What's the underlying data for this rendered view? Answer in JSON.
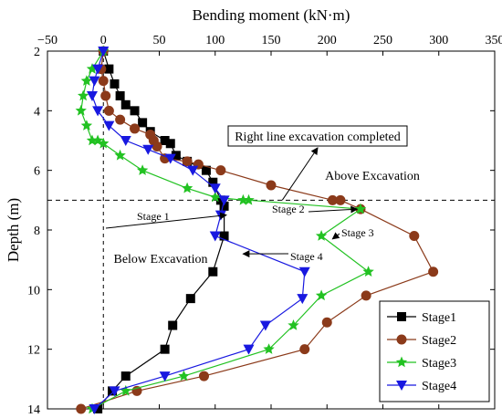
{
  "chart_data": {
    "type": "line",
    "xlabel": "Bending moment (kN·m)",
    "ylabel": "Depth (m)",
    "xlim": [
      -50,
      350
    ],
    "ylim": [
      2,
      14
    ],
    "y_inverted": true,
    "x_axis_position": "top",
    "x_ticks": [
      -50,
      0,
      50,
      100,
      150,
      200,
      250,
      300,
      350
    ],
    "y_ticks": [
      2,
      4,
      6,
      8,
      10,
      12,
      14
    ],
    "excavation_depth": 7,
    "annotations": {
      "excavation_completed": "Right line excavation completed",
      "above": "Above Excavation",
      "below": "Below Excavation",
      "stage1": "Stage 1",
      "stage2": "Stage 2",
      "stage3": "Stage 3",
      "stage4": "Stage 4"
    },
    "legend_position": "bottom-right",
    "series": [
      {
        "name": "Stage1",
        "color": "#000000",
        "marker": "square",
        "points": [
          [
            0,
            2.0
          ],
          [
            5,
            2.6
          ],
          [
            10,
            3.1
          ],
          [
            15,
            3.5
          ],
          [
            20,
            3.8
          ],
          [
            28,
            4.0
          ],
          [
            35,
            4.4
          ],
          [
            42,
            4.7
          ],
          [
            55,
            5.0
          ],
          [
            60,
            5.1
          ],
          [
            65,
            5.5
          ],
          [
            75,
            5.7
          ],
          [
            92,
            6.0
          ],
          [
            98,
            6.4
          ],
          [
            105,
            7.0
          ],
          [
            108,
            7.2
          ],
          [
            108,
            8.2
          ],
          [
            98,
            9.4
          ],
          [
            78,
            10.3
          ],
          [
            62,
            11.2
          ],
          [
            55,
            12.0
          ],
          [
            20,
            12.9
          ],
          [
            8,
            13.4
          ],
          [
            -5,
            14.0
          ]
        ]
      },
      {
        "name": "Stage2",
        "color": "#8B3A1A",
        "marker": "circle",
        "points": [
          [
            0,
            2.0
          ],
          [
            -2,
            2.6
          ],
          [
            0,
            3.0
          ],
          [
            2,
            3.5
          ],
          [
            5,
            4.0
          ],
          [
            15,
            4.3
          ],
          [
            28,
            4.6
          ],
          [
            42,
            4.8
          ],
          [
            45,
            5.0
          ],
          [
            48,
            5.2
          ],
          [
            55,
            5.6
          ],
          [
            75,
            5.7
          ],
          [
            85,
            5.8
          ],
          [
            105,
            6.0
          ],
          [
            150,
            6.5
          ],
          [
            205,
            7.0
          ],
          [
            212,
            7.0
          ],
          [
            230,
            7.3
          ],
          [
            278,
            8.2
          ],
          [
            295,
            9.4
          ],
          [
            235,
            10.2
          ],
          [
            200,
            11.1
          ],
          [
            180,
            12.0
          ],
          [
            90,
            12.9
          ],
          [
            30,
            13.4
          ],
          [
            -20,
            14.0
          ]
        ]
      },
      {
        "name": "Stage3",
        "color": "#22C222",
        "marker": "star",
        "points": [
          [
            0,
            2.0
          ],
          [
            -10,
            2.6
          ],
          [
            -15,
            3.0
          ],
          [
            -18,
            3.5
          ],
          [
            -20,
            4.0
          ],
          [
            -15,
            4.5
          ],
          [
            -10,
            5.0
          ],
          [
            -5,
            5.0
          ],
          [
            0,
            5.1
          ],
          [
            15,
            5.5
          ],
          [
            35,
            6.0
          ],
          [
            75,
            6.6
          ],
          [
            100,
            6.9
          ],
          [
            125,
            7.0
          ],
          [
            130,
            7.0
          ],
          [
            230,
            7.3
          ],
          [
            195,
            8.2
          ],
          [
            237,
            9.4
          ],
          [
            195,
            10.2
          ],
          [
            170,
            11.2
          ],
          [
            148,
            12.0
          ],
          [
            72,
            12.9
          ],
          [
            20,
            13.4
          ],
          [
            -10,
            14.0
          ]
        ]
      },
      {
        "name": "Stage4",
        "color": "#1818E0",
        "marker": "triangle-down",
        "points": [
          [
            0,
            2.0
          ],
          [
            -5,
            2.6
          ],
          [
            -8,
            3.0
          ],
          [
            -10,
            3.5
          ],
          [
            -5,
            4.0
          ],
          [
            5,
            4.5
          ],
          [
            20,
            5.0
          ],
          [
            40,
            5.3
          ],
          [
            60,
            5.6
          ],
          [
            80,
            6.0
          ],
          [
            100,
            6.6
          ],
          [
            108,
            7.0
          ],
          [
            105,
            7.5
          ],
          [
            100,
            8.2
          ],
          [
            180,
            9.4
          ],
          [
            178,
            10.3
          ],
          [
            145,
            11.2
          ],
          [
            130,
            12.0
          ],
          [
            55,
            12.9
          ],
          [
            10,
            13.4
          ],
          [
            -8,
            14.0
          ]
        ]
      }
    ]
  }
}
